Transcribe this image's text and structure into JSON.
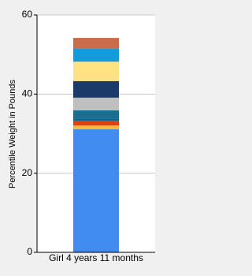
{
  "chart_data": {
    "type": "stacked-bar",
    "y_label": "Percentile Weight in Pounds",
    "categories": [
      "Girl 4 years 11 months"
    ],
    "series": [
      {
        "color": "#418cf0",
        "values": [
          31.1
        ]
      },
      {
        "color": "#fcb441",
        "values": [
          1.0
        ]
      },
      {
        "color": "#e0400a",
        "values": [
          1.2
        ]
      },
      {
        "color": "#056492",
        "values": [
          0.4
        ]
      },
      {
        "color": "#1a6e8f",
        "values": [
          2.2
        ]
      },
      {
        "color": "#bfbfbf",
        "values": [
          3.2
        ]
      },
      {
        "color": "#1a3b69",
        "values": [
          4.2
        ]
      },
      {
        "color": "#ffe382",
        "values": [
          4.9
        ]
      },
      {
        "color": "#129cdd",
        "values": [
          3.4
        ]
      },
      {
        "color": "#ca6b4b",
        "values": [
          2.6
        ]
      }
    ],
    "ylim": [
      0,
      60
    ],
    "yticks": [
      0,
      20,
      40,
      60
    ],
    "grid": true
  }
}
